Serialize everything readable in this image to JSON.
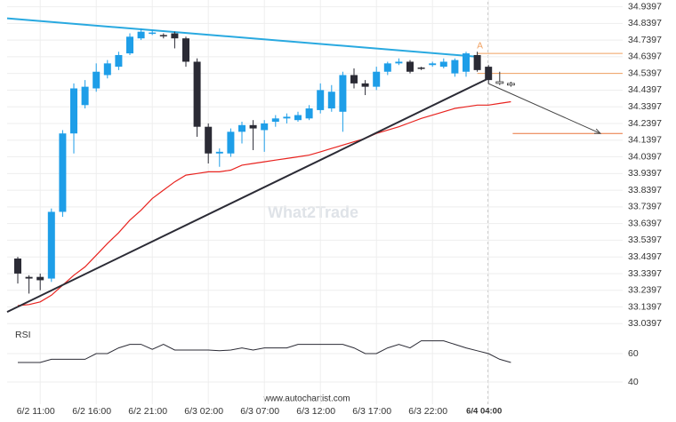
{
  "chart_data": {
    "type": "candlestick",
    "categories": [
      null,
      null,
      "6/2 11:00",
      null,
      null,
      null,
      null,
      "6/2 16:00",
      null,
      null,
      null,
      null,
      "6/2 21:00",
      null,
      null,
      null,
      null,
      "6/3 02:00",
      null,
      null,
      null,
      null,
      "6/3 07:00",
      null,
      null,
      null,
      null,
      "6/3 12:00",
      null,
      null,
      null,
      null,
      "6/3 17:00",
      null,
      null,
      null,
      null,
      "6/3 22:00",
      null,
      null,
      null,
      null,
      "6/4 04:00",
      null,
      null
    ],
    "open": [
      33.43,
      33.32,
      33.32,
      33.31,
      33.71,
      34.18,
      34.35,
      34.45,
      34.53,
      34.58,
      34.66,
      34.75,
      34.78,
      34.77,
      34.78,
      34.75,
      34.61,
      34.22,
      34.06,
      34.06,
      34.19,
      34.23,
      34.2,
      34.25,
      34.27,
      34.26,
      34.27,
      34.32,
      34.33,
      34.31,
      34.53,
      34.48,
      34.46,
      34.55,
      34.6,
      34.61,
      34.575,
      34.59,
      34.58,
      34.54,
      34.55,
      34.65,
      34.58,
      null,
      null
    ],
    "high": [
      33.44,
      33.33,
      33.34,
      33.73,
      34.2,
      34.48,
      34.5,
      34.6,
      34.62,
      34.67,
      34.78,
      34.81,
      34.8,
      34.78,
      34.79,
      34.76,
      34.63,
      34.24,
      34.09,
      34.21,
      34.25,
      34.26,
      34.26,
      34.29,
      34.3,
      34.31,
      34.35,
      34.48,
      34.47,
      34.55,
      34.57,
      34.5,
      34.58,
      34.61,
      34.63,
      34.62,
      34.58,
      34.61,
      34.63,
      34.63,
      34.67,
      34.67,
      34.59,
      null,
      null
    ],
    "low": [
      33.28,
      33.22,
      33.24,
      33.29,
      33.68,
      34.06,
      34.33,
      34.43,
      34.51,
      34.56,
      34.65,
      34.74,
      34.77,
      34.75,
      34.69,
      34.58,
      34.16,
      34.0,
      33.98,
      34.04,
      34.12,
      34.08,
      34.07,
      34.22,
      34.24,
      34.25,
      34.26,
      34.3,
      34.31,
      34.19,
      34.45,
      34.41,
      34.44,
      34.53,
      34.59,
      34.54,
      34.56,
      34.58,
      34.57,
      34.52,
      34.52,
      34.55,
      34.48,
      null,
      null
    ],
    "close": [
      33.34,
      33.31,
      33.3,
      33.71,
      34.18,
      34.45,
      34.46,
      34.55,
      34.6,
      34.65,
      34.76,
      34.79,
      34.785,
      34.765,
      34.75,
      34.61,
      34.22,
      34.06,
      34.07,
      34.19,
      34.23,
      34.21,
      34.24,
      34.27,
      34.28,
      34.29,
      34.33,
      34.44,
      34.43,
      34.53,
      34.48,
      34.46,
      34.55,
      34.6,
      34.61,
      34.55,
      34.57,
      34.6,
      34.61,
      34.62,
      34.66,
      34.56,
      34.5,
      null,
      null
    ],
    "forecast": {
      "color": "#ffffff",
      "open": [
        null,
        null,
        null,
        null,
        null,
        null,
        null,
        null,
        null,
        null,
        null,
        null,
        null,
        null,
        null,
        null,
        null,
        null,
        null,
        null,
        null,
        null,
        null,
        null,
        null,
        null,
        null,
        null,
        null,
        null,
        null,
        null,
        null,
        null,
        null,
        null,
        null,
        null,
        null,
        null,
        null,
        null,
        null,
        34.49,
        34.48
      ],
      "high": [
        null,
        null,
        null,
        null,
        null,
        null,
        null,
        null,
        null,
        null,
        null,
        null,
        null,
        null,
        null,
        null,
        null,
        null,
        null,
        null,
        null,
        null,
        null,
        null,
        null,
        null,
        null,
        null,
        null,
        null,
        null,
        null,
        null,
        null,
        null,
        null,
        null,
        null,
        null,
        null,
        null,
        null,
        null,
        34.55,
        34.49
      ],
      "low": [
        null,
        null,
        null,
        null,
        null,
        null,
        null,
        null,
        null,
        null,
        null,
        null,
        null,
        null,
        null,
        null,
        null,
        null,
        null,
        null,
        null,
        null,
        null,
        null,
        null,
        null,
        null,
        null,
        null,
        null,
        null,
        null,
        null,
        null,
        null,
        null,
        null,
        null,
        null,
        null,
        null,
        null,
        null,
        34.47,
        34.46
      ],
      "close": [
        null,
        null,
        null,
        null,
        null,
        null,
        null,
        null,
        null,
        null,
        null,
        null,
        null,
        null,
        null,
        null,
        null,
        null,
        null,
        null,
        null,
        null,
        null,
        null,
        null,
        null,
        null,
        null,
        null,
        null,
        null,
        null,
        null,
        null,
        null,
        null,
        null,
        null,
        null,
        null,
        null,
        null,
        null,
        34.48,
        34.47
      ]
    },
    "up_color": "#1e9ee8",
    "down_color": "#2b2b35",
    "ylim": [
      33.02,
      34.98
    ],
    "yticks": [
      34.9397,
      34.8397,
      34.7397,
      34.6397,
      34.5397,
      34.4397,
      34.3397,
      34.2397,
      34.1397,
      34.0397,
      33.9397,
      33.8397,
      33.7397,
      33.6397,
      33.5397,
      33.4397,
      33.3397,
      33.2397,
      33.1397,
      33.0397
    ],
    "grid": true,
    "moving_average": {
      "color": "#e8231f",
      "values": [
        33.148,
        33.154,
        33.17,
        33.21,
        33.27,
        33.33,
        33.38,
        33.45,
        33.52,
        33.585,
        33.66,
        33.72,
        33.79,
        33.84,
        33.89,
        33.93,
        33.94,
        33.95,
        33.95,
        33.96,
        33.99,
        34.0,
        34.01,
        34.02,
        34.03,
        34.04,
        34.05,
        34.07,
        34.09,
        34.11,
        34.13,
        34.15,
        34.18,
        34.2,
        34.22,
        34.245,
        34.27,
        34.29,
        34.31,
        34.33,
        34.34,
        34.35,
        34.35,
        34.36,
        34.37
      ]
    },
    "resistance": {
      "color": "#29a9e0",
      "values": [
        34.87,
        34.64
      ]
    },
    "support": {
      "color": "#2b2b35",
      "values": [
        33.11,
        34.51
      ]
    },
    "levels": {
      "color": "#f0a060",
      "values": [
        34.66,
        34.54
      ]
    },
    "target": {
      "color": "#e8743b",
      "value": 34.18
    },
    "marker": "A",
    "watermark": "What2Trade",
    "footer": "www.autochartist.com",
    "rsi": {
      "label": "RSI",
      "color": "#2b2b35",
      "values": [
        53.75,
        53.75,
        53.75,
        56,
        56,
        56,
        56,
        60,
        60,
        64,
        66.5,
        66.5,
        63,
        66.5,
        62.5,
        62.5,
        62.5,
        62.5,
        62,
        62.5,
        64,
        62.5,
        64,
        64,
        64,
        66.5,
        66.5,
        66.5,
        66.5,
        66.5,
        64,
        60,
        60,
        64,
        66.5,
        64,
        69,
        69,
        69,
        66.5,
        64,
        62,
        60,
        56,
        53.75
      ],
      "ylim": [
        30,
        75
      ],
      "yticks": [
        60,
        40
      ]
    }
  }
}
